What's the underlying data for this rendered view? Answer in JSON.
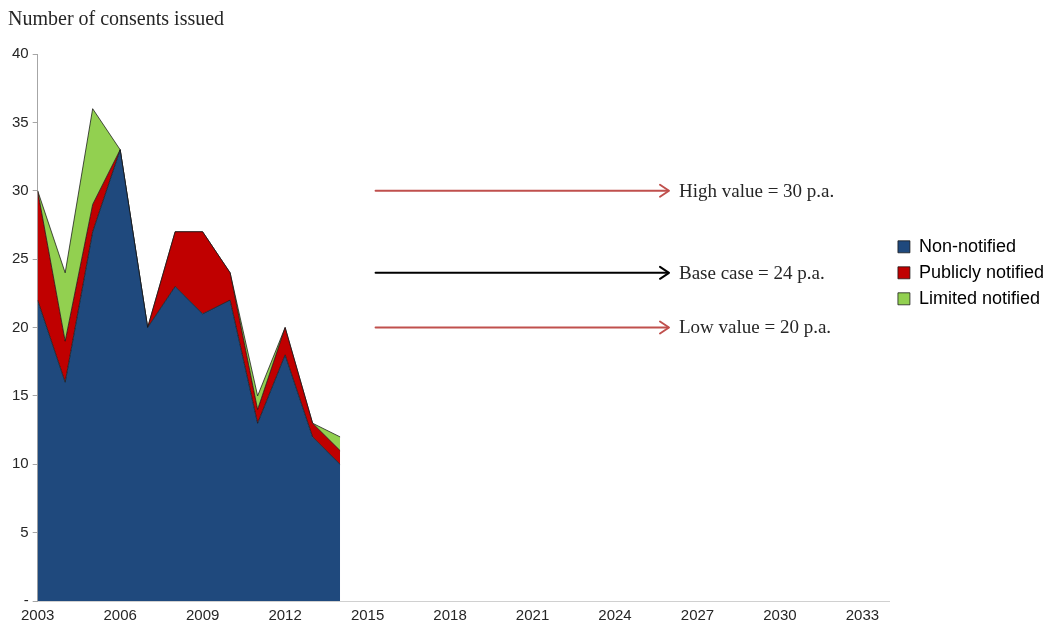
{
  "chart_data": {
    "type": "area",
    "ylabel": "Number of consents issued",
    "x": [
      2003,
      2004,
      2005,
      2006,
      2007,
      2008,
      2009,
      2010,
      2011,
      2012,
      2013,
      2014
    ],
    "series": [
      {
        "name": "Non-notified",
        "color": "#1f497d",
        "values": [
          22,
          16,
          27,
          33,
          20,
          23,
          21,
          22,
          13,
          18,
          12,
          10
        ]
      },
      {
        "name": "Publicly notified",
        "color": "#c00000",
        "values": [
          8,
          3,
          2,
          0,
          0,
          4,
          6,
          2,
          1,
          2,
          1,
          1
        ]
      },
      {
        "name": "Limited notified",
        "color": "#92d050",
        "values": [
          0,
          5,
          7,
          0,
          0,
          0,
          0,
          0,
          1,
          0,
          0,
          1
        ]
      }
    ],
    "stacked": true,
    "xlim": [
      2003,
      2034
    ],
    "xticks": [
      2003,
      2006,
      2009,
      2012,
      2015,
      2018,
      2021,
      2024,
      2027,
      2030,
      2033
    ],
    "ylim": [
      0,
      40
    ],
    "yticks": [
      {
        "value": 0,
        "label": "-"
      },
      5,
      10,
      15,
      20,
      25,
      30,
      35,
      40
    ],
    "legend": "right",
    "ref_lines": [
      {
        "axis": "y",
        "value": 30,
        "label": "High value = 30 p.a.",
        "color": "#c0504d"
      },
      {
        "axis": "y",
        "value": 24,
        "label": "Base case = 24 p.a.",
        "color": "#000000"
      },
      {
        "axis": "y",
        "value": 20,
        "label": "Low value = 20 p.a.",
        "color": "#c0504d"
      }
    ]
  }
}
